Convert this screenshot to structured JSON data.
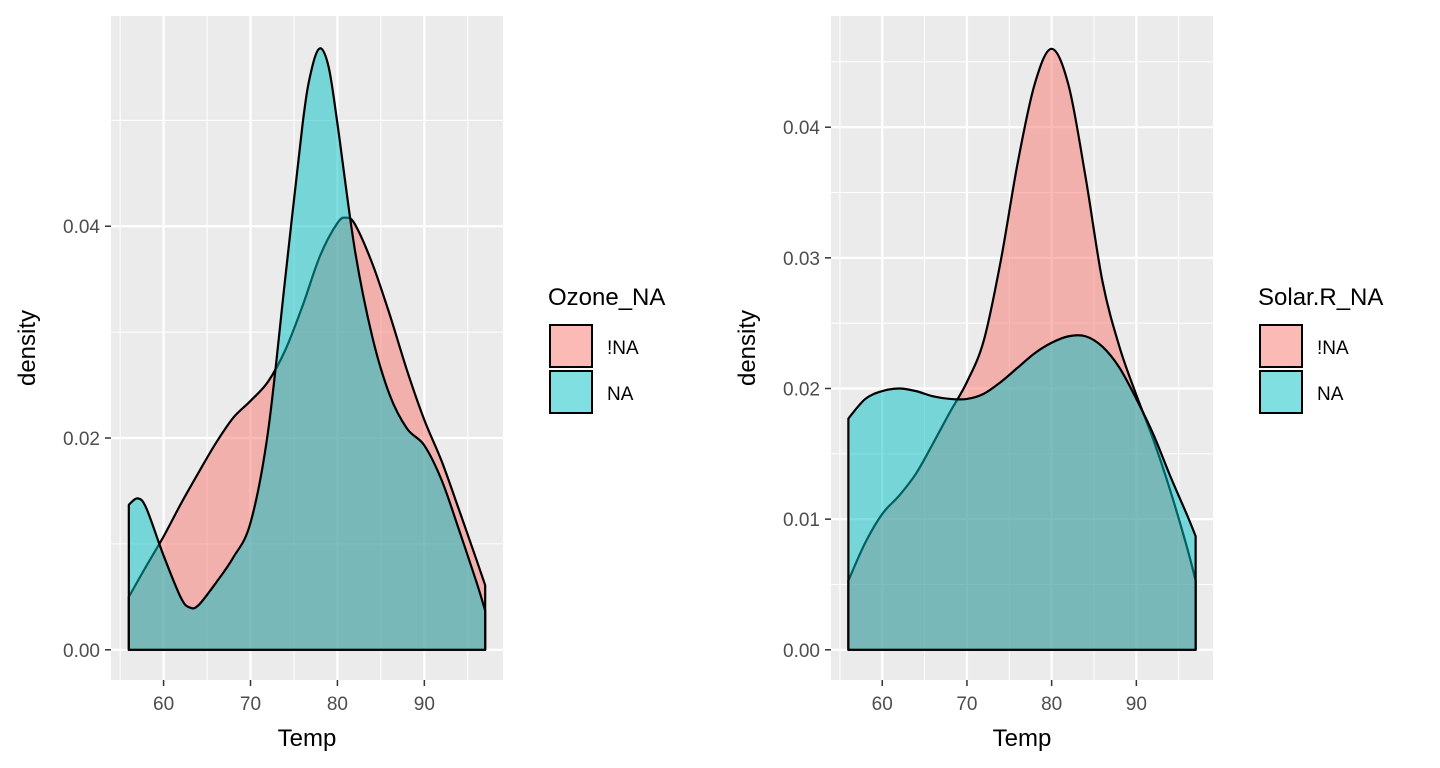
{
  "chart_data": [
    {
      "type": "area",
      "subtype": "density",
      "xlabel": "Temp",
      "ylabel": "density",
      "xlim": [
        56,
        97
      ],
      "ylim": [
        0,
        0.057
      ],
      "x_ticks": [
        60,
        70,
        80,
        90
      ],
      "x_tick_labels": [
        "60",
        "70",
        "80",
        "90"
      ],
      "y_ticks": [
        0,
        0.02,
        0.04
      ],
      "y_tick_labels": [
        "0.00",
        "0.02",
        "0.04"
      ],
      "grid": true,
      "legend": {
        "title": "Ozone_NA",
        "placement": "right",
        "entries": [
          {
            "label": "!NA",
            "color": "#f8766d"
          },
          {
            "label": "NA",
            "color": "#00bfc4"
          }
        ]
      },
      "series": [
        {
          "name": "!NA",
          "color": "#f8766d",
          "x": [
            56,
            58,
            60,
            62,
            64,
            66,
            68,
            70,
            72,
            74,
            76,
            78,
            80,
            81,
            82,
            84,
            86,
            88,
            90,
            92,
            94,
            96,
            97
          ],
          "y": [
            0.005,
            0.0079,
            0.0107,
            0.0138,
            0.0167,
            0.0195,
            0.0219,
            0.0235,
            0.0253,
            0.0283,
            0.0325,
            0.0372,
            0.0403,
            0.0408,
            0.0402,
            0.0365,
            0.0317,
            0.0264,
            0.0217,
            0.0178,
            0.0132,
            0.0085,
            0.0061
          ]
        },
        {
          "name": "NA",
          "color": "#00bfc4",
          "x": [
            56,
            57,
            58,
            60,
            62,
            63,
            64,
            66,
            68,
            70,
            72,
            74,
            76,
            77,
            78,
            79,
            80,
            82,
            84,
            86,
            88,
            90,
            92,
            94,
            96,
            97
          ],
          "y": [
            0.0137,
            0.0143,
            0.0134,
            0.0089,
            0.0049,
            0.004,
            0.0042,
            0.0063,
            0.0087,
            0.012,
            0.0205,
            0.0351,
            0.0497,
            0.0547,
            0.0568,
            0.055,
            0.0497,
            0.0378,
            0.0296,
            0.0241,
            0.0209,
            0.0193,
            0.016,
            0.0113,
            0.0064,
            0.0037
          ]
        }
      ]
    },
    {
      "type": "area",
      "subtype": "density",
      "xlabel": "Temp",
      "ylabel": "density",
      "xlim": [
        56,
        97
      ],
      "ylim": [
        0,
        0.0462
      ],
      "x_ticks": [
        60,
        70,
        80,
        90
      ],
      "x_tick_labels": [
        "60",
        "70",
        "80",
        "90"
      ],
      "y_ticks": [
        0,
        0.01,
        0.02,
        0.03,
        0.04
      ],
      "y_tick_labels": [
        "0.00",
        "0.01",
        "0.02",
        "0.03",
        "0.04"
      ],
      "grid": true,
      "legend": {
        "title": "Solar.R_NA",
        "placement": "right",
        "entries": [
          {
            "label": "!NA",
            "color": "#f8766d"
          },
          {
            "label": "NA",
            "color": "#00bfc4"
          }
        ]
      },
      "series": [
        {
          "name": "!NA",
          "color": "#f8766d",
          "x": [
            56,
            58,
            60,
            62,
            64,
            66,
            68,
            70,
            72,
            74,
            76,
            78,
            80,
            82,
            84,
            86,
            88,
            90,
            92,
            94,
            96,
            97
          ],
          "y": [
            0.0053,
            0.0082,
            0.0104,
            0.0118,
            0.0135,
            0.0158,
            0.0182,
            0.0205,
            0.0237,
            0.0298,
            0.0373,
            0.0433,
            0.046,
            0.0432,
            0.0362,
            0.0282,
            0.0232,
            0.0195,
            0.0161,
            0.0122,
            0.0078,
            0.0053
          ]
        },
        {
          "name": "NA",
          "color": "#00bfc4",
          "x": [
            56,
            58,
            60,
            62,
            64,
            66,
            68,
            70,
            72,
            74,
            76,
            78,
            80,
            82,
            84,
            86,
            88,
            90,
            92,
            94,
            96,
            97
          ],
          "y": [
            0.0177,
            0.0192,
            0.0198,
            0.02,
            0.0198,
            0.0194,
            0.0192,
            0.0192,
            0.0196,
            0.0205,
            0.0216,
            0.0227,
            0.0235,
            0.024,
            0.024,
            0.0232,
            0.0216,
            0.0192,
            0.0165,
            0.0133,
            0.0103,
            0.0087
          ]
        }
      ]
    }
  ]
}
